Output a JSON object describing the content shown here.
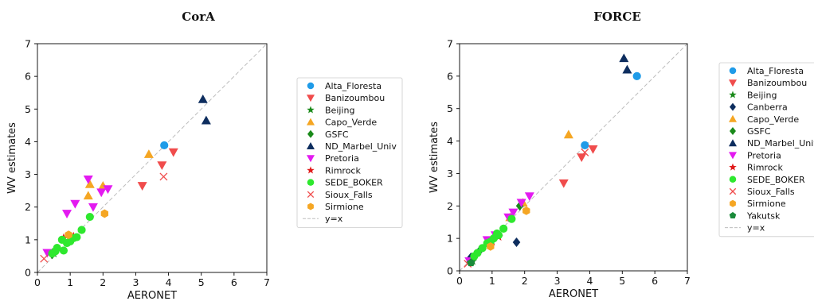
{
  "chart_data": [
    {
      "type": "scatter",
      "title": "CorA",
      "xlabel": "AERONET",
      "ylabel": "WV estimates",
      "xlim": [
        0,
        7
      ],
      "ylim": [
        0,
        7
      ],
      "xticks": [
        "0",
        "1",
        "2",
        "3",
        "4",
        "5",
        "6",
        "7"
      ],
      "yticks": [
        "0",
        "1",
        "2",
        "3",
        "4",
        "5",
        "6",
        "7"
      ],
      "grid": false,
      "legend_position": "outside-right",
      "reference_line": {
        "name": "y=x",
        "style": "dashed",
        "color": "#bdbdbd"
      },
      "series": [
        {
          "name": "Alta_Floresta",
          "marker": "circle",
          "color": "#1f9be8",
          "points": [
            [
              3.87,
              3.89
            ]
          ]
        },
        {
          "name": "Banizoumbou",
          "marker": "triangle-down",
          "color": "#f04c4c",
          "points": [
            [
              3.2,
              2.65
            ],
            [
              3.8,
              3.28
            ],
            [
              4.15,
              3.68
            ]
          ]
        },
        {
          "name": "Beijing",
          "marker": "star",
          "color": "#1a8a1a",
          "points": [
            [
              0.45,
              0.6
            ],
            [
              0.5,
              0.58
            ]
          ]
        },
        {
          "name": "Capo_Verde",
          "marker": "triangle-up",
          "color": "#f5a623",
          "points": [
            [
              3.4,
              3.62
            ],
            [
              1.6,
              2.7
            ],
            [
              2.0,
              2.65
            ],
            [
              1.55,
              2.35
            ]
          ]
        },
        {
          "name": "GSFC",
          "marker": "diamond",
          "color": "#1a8a1a",
          "points": [
            [
              0.45,
              0.55
            ]
          ]
        },
        {
          "name": "ND_Marbel_Univ",
          "marker": "triangle-up",
          "color": "#0d2d5e",
          "points": [
            [
              5.05,
              5.3
            ],
            [
              5.15,
              4.65
            ]
          ]
        },
        {
          "name": "Pretoria",
          "marker": "triangle-down",
          "color": "#e31af0",
          "points": [
            [
              1.55,
              2.85
            ],
            [
              2.15,
              2.55
            ],
            [
              1.95,
              2.45
            ],
            [
              1.15,
              2.1
            ],
            [
              0.9,
              1.8
            ],
            [
              1.7,
              2.0
            ],
            [
              0.3,
              0.6
            ]
          ]
        },
        {
          "name": "Rimrock",
          "marker": "star",
          "color": "#e01a1a",
          "points": [
            [
              0.8,
              1.05
            ],
            [
              1.1,
              1.1
            ]
          ]
        },
        {
          "name": "SEDE_BOKER",
          "marker": "circle",
          "color": "#2ee82e",
          "points": [
            [
              0.45,
              0.58
            ],
            [
              0.55,
              0.65
            ],
            [
              0.6,
              0.75
            ],
            [
              0.75,
              1.0
            ],
            [
              0.8,
              0.67
            ],
            [
              0.9,
              0.9
            ],
            [
              1.0,
              0.95
            ],
            [
              1.1,
              1.05
            ],
            [
              1.2,
              1.08
            ],
            [
              1.35,
              1.3
            ],
            [
              1.6,
              1.7
            ]
          ]
        },
        {
          "name": "Sioux_Falls",
          "marker": "x",
          "color": "#f04c4c",
          "points": [
            [
              0.2,
              0.42
            ],
            [
              3.85,
              2.93
            ]
          ]
        },
        {
          "name": "Sirmione",
          "marker": "hexagon",
          "color": "#f5a623",
          "points": [
            [
              0.95,
              1.15
            ],
            [
              2.05,
              1.8
            ]
          ]
        }
      ]
    },
    {
      "type": "scatter",
      "title": "FORCE",
      "xlabel": "AERONET",
      "ylabel": "WV estimates",
      "xlim": [
        0,
        7
      ],
      "ylim": [
        0,
        7
      ],
      "xticks": [
        "0",
        "1",
        "2",
        "3",
        "4",
        "5",
        "6",
        "7"
      ],
      "yticks": [
        "0",
        "1",
        "2",
        "3",
        "4",
        "5",
        "6",
        "7"
      ],
      "grid": false,
      "legend_position": "outside-right",
      "reference_line": {
        "name": "y=x",
        "style": "dashed",
        "color": "#bdbdbd"
      },
      "series": [
        {
          "name": "Alta_Floresta",
          "marker": "circle",
          "color": "#1f9be8",
          "points": [
            [
              5.45,
              6.0
            ],
            [
              3.85,
              3.87
            ]
          ]
        },
        {
          "name": "Banizoumbou",
          "marker": "triangle-down",
          "color": "#f04c4c",
          "points": [
            [
              3.2,
              2.7
            ],
            [
              3.75,
              3.5
            ],
            [
              4.1,
              3.75
            ]
          ]
        },
        {
          "name": "Beijing",
          "marker": "star",
          "color": "#1a8a1a",
          "points": [
            [
              0.3,
              0.35
            ],
            [
              0.4,
              0.3
            ]
          ]
        },
        {
          "name": "Canberra",
          "marker": "diamond",
          "color": "#0d2d5e",
          "points": [
            [
              1.75,
              0.88
            ],
            [
              0.6,
              0.6
            ],
            [
              0.35,
              0.42
            ]
          ]
        },
        {
          "name": "Capo_Verde",
          "marker": "triangle-up",
          "color": "#f5a623",
          "points": [
            [
              3.35,
              4.2
            ],
            [
              1.95,
              2.1
            ],
            [
              1.55,
              1.65
            ]
          ]
        },
        {
          "name": "GSFC",
          "marker": "diamond",
          "color": "#1a8a1a",
          "points": [
            [
              1.85,
              2.0
            ]
          ]
        },
        {
          "name": "ND_Marbel_Univ",
          "marker": "triangle-up",
          "color": "#0d2d5e",
          "points": [
            [
              5.05,
              6.55
            ],
            [
              5.15,
              6.2
            ]
          ]
        },
        {
          "name": "Pretoria",
          "marker": "triangle-down",
          "color": "#e31af0",
          "points": [
            [
              2.15,
              2.3
            ],
            [
              1.9,
              2.1
            ],
            [
              1.65,
              1.8
            ],
            [
              1.1,
              1.1
            ],
            [
              0.85,
              0.95
            ],
            [
              0.3,
              0.3
            ],
            [
              1.5,
              1.65
            ]
          ]
        },
        {
          "name": "Rimrock",
          "marker": "star",
          "color": "#e01a1a",
          "points": [
            [
              1.2,
              1.05
            ],
            [
              1.0,
              0.9
            ]
          ]
        },
        {
          "name": "SEDE_BOKER",
          "marker": "circle",
          "color": "#2ee82e",
          "points": [
            [
              0.45,
              0.45
            ],
            [
              0.55,
              0.55
            ],
            [
              0.7,
              0.7
            ],
            [
              0.85,
              0.85
            ],
            [
              0.95,
              0.9
            ],
            [
              1.05,
              1.0
            ],
            [
              1.15,
              1.15
            ],
            [
              1.35,
              1.3
            ],
            [
              1.6,
              1.6
            ],
            [
              1.2,
              1.1
            ]
          ]
        },
        {
          "name": "Sioux_Falls",
          "marker": "x",
          "color": "#f04c4c",
          "points": [
            [
              0.25,
              0.22
            ],
            [
              3.85,
              3.65
            ]
          ]
        },
        {
          "name": "Sirmione",
          "marker": "hexagon",
          "color": "#f5a623",
          "points": [
            [
              2.05,
              1.85
            ],
            [
              0.95,
              0.75
            ]
          ]
        },
        {
          "name": "Yakutsk",
          "marker": "pentagon",
          "color": "#1a8a3a",
          "points": [
            [
              0.35,
              0.25
            ]
          ]
        }
      ]
    }
  ]
}
